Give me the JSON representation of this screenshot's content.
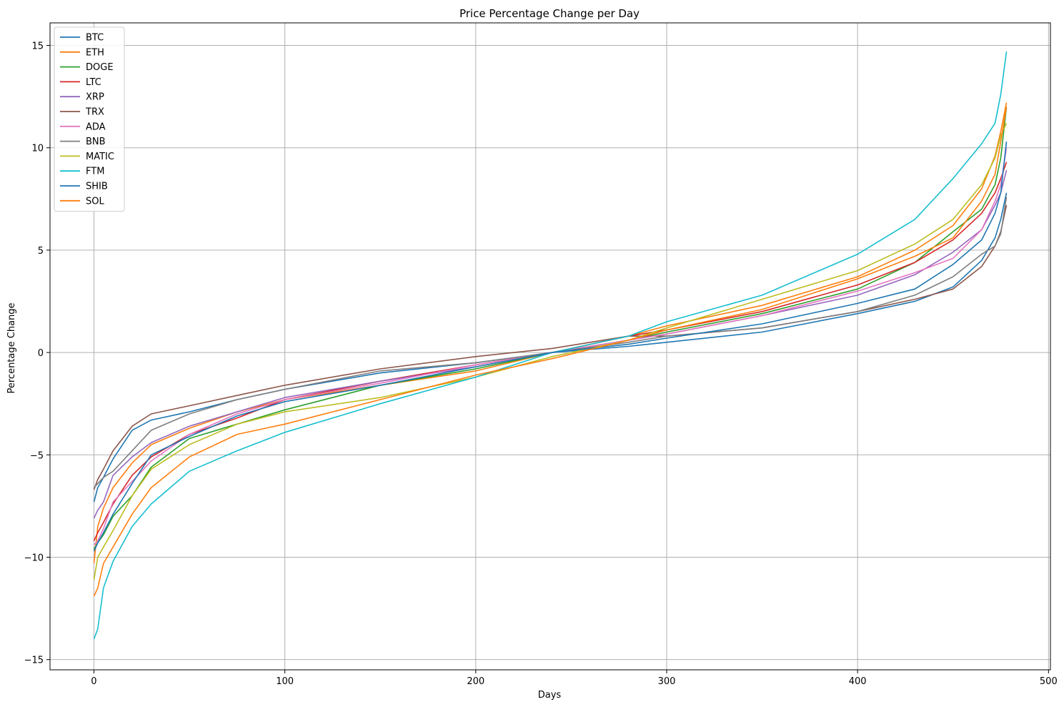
{
  "chart_data": {
    "type": "line",
    "title": "Price Percentage Change per Day",
    "xlabel": "Days",
    "ylabel": "Percentage Change",
    "xlim": [
      -23,
      501
    ],
    "ylim": [
      -15.5,
      16.1
    ],
    "xticks": [
      0,
      100,
      200,
      300,
      400,
      500
    ],
    "xtick_labels": [
      "0",
      "100",
      "200",
      "300",
      "400",
      "500"
    ],
    "yticks": [
      -15,
      -10,
      -5,
      0,
      5,
      10,
      15
    ],
    "ytick_labels": [
      "−15",
      "−10",
      "−5",
      "0",
      "5",
      "10",
      "15"
    ],
    "grid": true,
    "legend_position": "upper-left",
    "x_points": [
      0,
      2,
      5,
      10,
      20,
      30,
      50,
      75,
      100,
      150,
      200,
      240,
      280,
      300,
      350,
      400,
      430,
      450,
      465,
      472,
      475,
      478
    ],
    "series": [
      {
        "name": "BTC",
        "color": "#1f77b4",
        "values": [
          -7.3,
          -6.6,
          -6.1,
          -5.2,
          -3.8,
          -3.3,
          -2.9,
          -2.3,
          -1.8,
          -1.0,
          -0.5,
          0.0,
          0.3,
          0.5,
          1.0,
          1.9,
          2.5,
          3.2,
          4.5,
          5.6,
          6.5,
          7.8
        ]
      },
      {
        "name": "ETH",
        "color": "#ff7f0e",
        "values": [
          -10.3,
          -8.5,
          -7.6,
          -6.6,
          -5.4,
          -4.5,
          -3.7,
          -2.9,
          -2.3,
          -1.6,
          -0.9,
          0.0,
          0.8,
          1.3,
          2.3,
          3.7,
          5.0,
          6.2,
          8.0,
          9.6,
          10.8,
          12.2
        ]
      },
      {
        "name": "DOGE",
        "color": "#2ca02c",
        "values": [
          -9.6,
          -9.3,
          -8.9,
          -8.0,
          -7.0,
          -5.6,
          -4.2,
          -3.5,
          -2.8,
          -1.6,
          -0.8,
          0.0,
          0.6,
          1.0,
          1.9,
          3.1,
          4.4,
          5.9,
          7.0,
          8.2,
          9.5,
          12.0
        ]
      },
      {
        "name": "LTC",
        "color": "#d62728",
        "values": [
          -9.2,
          -8.8,
          -8.3,
          -7.4,
          -6.0,
          -5.1,
          -4.0,
          -3.2,
          -2.3,
          -1.4,
          -0.6,
          0.0,
          0.8,
          1.1,
          2.0,
          3.3,
          4.4,
          5.5,
          6.8,
          7.8,
          8.5,
          9.3
        ]
      },
      {
        "name": "XRP",
        "color": "#9467bd",
        "values": [
          -8.1,
          -7.7,
          -7.3,
          -6.0,
          -5.1,
          -4.4,
          -3.6,
          -2.9,
          -2.2,
          -1.4,
          -0.7,
          0.0,
          0.6,
          0.9,
          1.8,
          2.8,
          3.8,
          4.9,
          6.0,
          7.2,
          7.8,
          8.9
        ]
      },
      {
        "name": "TRX",
        "color": "#8c564b",
        "values": [
          -6.7,
          -6.2,
          -5.7,
          -4.8,
          -3.6,
          -3.0,
          -2.6,
          -2.1,
          -1.6,
          -0.8,
          -0.2,
          0.2,
          0.8,
          0.8,
          1.2,
          2.0,
          2.6,
          3.1,
          4.2,
          5.2,
          5.9,
          7.2
        ]
      },
      {
        "name": "ADA",
        "color": "#e377c2",
        "values": [
          -9.4,
          -9.2,
          -8.6,
          -7.3,
          -6.3,
          -5.3,
          -4.0,
          -3.0,
          -2.3,
          -1.5,
          -0.6,
          0.0,
          0.6,
          0.9,
          1.8,
          3.0,
          3.9,
          4.6,
          6.0,
          7.4,
          8.2,
          10.0
        ]
      },
      {
        "name": "BNB",
        "color": "#7f7f7f",
        "values": [
          -6.6,
          -6.4,
          -6.1,
          -5.8,
          -4.8,
          -3.8,
          -3.0,
          -2.3,
          -1.8,
          -0.9,
          -0.5,
          0.0,
          0.5,
          0.8,
          1.2,
          2.0,
          2.8,
          3.7,
          4.8,
          5.2,
          5.8,
          7.6
        ]
      },
      {
        "name": "MATIC",
        "color": "#bcbd22",
        "values": [
          -11.1,
          -10.0,
          -9.5,
          -8.7,
          -7.0,
          -5.7,
          -4.5,
          -3.5,
          -2.9,
          -2.2,
          -1.2,
          -0.2,
          0.6,
          1.2,
          2.6,
          4.0,
          5.3,
          6.5,
          8.2,
          9.5,
          10.6,
          11.2
        ]
      },
      {
        "name": "FTM",
        "color": "#17becf",
        "values": [
          -14.0,
          -13.5,
          -11.5,
          -10.2,
          -8.5,
          -7.4,
          -5.8,
          -4.8,
          -3.9,
          -2.5,
          -1.2,
          0.0,
          0.8,
          1.5,
          2.8,
          4.8,
          6.5,
          8.5,
          10.2,
          11.2,
          12.6,
          14.7
        ]
      },
      {
        "name": "SHIB",
        "color": "#1f77b4",
        "values": [
          -9.7,
          -9.3,
          -8.8,
          -7.9,
          -6.4,
          -5.0,
          -4.1,
          -3.1,
          -2.4,
          -1.6,
          -0.7,
          0.0,
          0.4,
          0.7,
          1.4,
          2.4,
          3.1,
          4.3,
          5.5,
          6.8,
          7.8,
          10.3
        ]
      },
      {
        "name": "SOL",
        "color": "#ff7f0e",
        "values": [
          -11.9,
          -11.5,
          -10.3,
          -9.5,
          -7.9,
          -6.6,
          -5.1,
          -4.0,
          -3.5,
          -2.3,
          -1.1,
          -0.3,
          0.6,
          1.1,
          2.1,
          3.6,
          4.7,
          5.6,
          7.4,
          8.7,
          10.3,
          12.0
        ]
      }
    ]
  }
}
